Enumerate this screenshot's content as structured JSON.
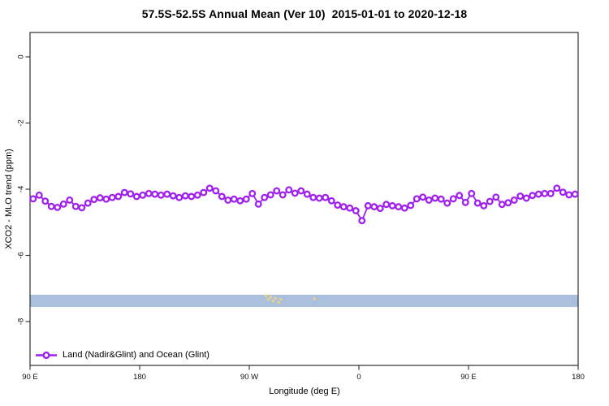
{
  "legend": {
    "label": "Land (Nadir&Glint) and Ocean (Glint)"
  },
  "colors": {
    "series": "#A020F0",
    "band": "#ABC0DD",
    "speck": "#F2D478",
    "axis": "#2E2E2E",
    "text": "#111111"
  },
  "chart_data": {
    "type": "line",
    "title": "57.5S-52.5S Annual Mean (Ver 10)  2015-01-01 to 2020-12-18",
    "xlabel": "Longitude (deg E)",
    "ylabel": "XCO2 - MLO trend (ppm)",
    "xlim": [
      90,
      540
    ],
    "ylim": [
      -9.3,
      0.75
    ],
    "grid": false,
    "legend_position": "bottom-left",
    "x_ticks": {
      "values": [
        90,
        180,
        270,
        360,
        450,
        540
      ],
      "labels": [
        "90 E",
        "180",
        "90 W",
        "0",
        "90 E",
        "180"
      ]
    },
    "y_ticks": {
      "values": [
        0,
        -2,
        -4,
        -6,
        -8
      ],
      "labels": [
        "0",
        "-2",
        "-4",
        "-6",
        "-8"
      ]
    },
    "series": [
      {
        "name": "Land (Nadir&Glint) and Ocean (Glint)",
        "color": "#A020F0",
        "marker": "open-circle",
        "x": [
          92.5,
          97.5,
          102.5,
          107.5,
          112.5,
          117.5,
          122.5,
          127.5,
          132.5,
          137.5,
          142.5,
          147.5,
          152.5,
          157.5,
          162.5,
          167.5,
          172.5,
          177.5,
          182.5,
          187.5,
          192.5,
          197.5,
          202.5,
          207.5,
          212.5,
          217.5,
          222.5,
          227.5,
          232.5,
          237.5,
          242.5,
          247.5,
          252.5,
          257.5,
          262.5,
          267.5,
          272.5,
          277.5,
          282.5,
          287.5,
          292.5,
          297.5,
          302.5,
          307.5,
          312.5,
          317.5,
          322.5,
          327.5,
          332.5,
          337.5,
          342.5,
          347.5,
          352.5,
          357.5,
          362.5,
          367.5,
          372.5,
          377.5,
          382.5,
          387.5,
          392.5,
          397.5,
          402.5,
          407.5,
          412.5,
          417.5,
          422.5,
          427.5,
          432.5,
          437.5,
          442.5,
          447.5,
          452.5,
          457.5,
          462.5,
          467.5,
          472.5,
          477.5,
          482.5,
          487.5,
          492.5,
          497.5,
          502.5,
          507.5,
          512.5,
          517.5,
          522.5,
          527.5,
          532.5,
          537.5
        ],
        "values": [
          -4.29,
          -4.18,
          -4.36,
          -4.52,
          -4.55,
          -4.45,
          -4.33,
          -4.52,
          -4.56,
          -4.42,
          -4.31,
          -4.26,
          -4.3,
          -4.25,
          -4.22,
          -4.1,
          -4.14,
          -4.22,
          -4.18,
          -4.13,
          -4.15,
          -4.18,
          -4.15,
          -4.2,
          -4.25,
          -4.2,
          -4.22,
          -4.18,
          -4.1,
          -3.97,
          -4.05,
          -4.22,
          -4.33,
          -4.3,
          -4.35,
          -4.3,
          -4.13,
          -4.45,
          -4.25,
          -4.17,
          -4.05,
          -4.17,
          -4.02,
          -4.12,
          -4.05,
          -4.15,
          -4.25,
          -4.27,
          -4.25,
          -4.35,
          -4.48,
          -4.53,
          -4.57,
          -4.65,
          -4.95,
          -4.5,
          -4.53,
          -4.58,
          -4.46,
          -4.5,
          -4.53,
          -4.57,
          -4.49,
          -4.29,
          -4.24,
          -4.33,
          -4.27,
          -4.3,
          -4.42,
          -4.29,
          -4.19,
          -4.4,
          -4.13,
          -4.42,
          -4.5,
          -4.37,
          -4.24,
          -4.46,
          -4.41,
          -4.33,
          -4.21,
          -4.27,
          -4.19,
          -4.15,
          -4.13,
          -4.13,
          -3.97,
          -4.09,
          -4.17,
          -4.15
        ]
      }
    ],
    "band": {
      "y_top": -7.19,
      "y_bottom": -7.56,
      "x_range": [
        90,
        540
      ],
      "color": "#ABC0DD"
    },
    "specks": [
      {
        "x": 283.5,
        "y": -7.22
      },
      {
        "x": 285.5,
        "y": -7.33
      },
      {
        "x": 287.5,
        "y": -7.26
      },
      {
        "x": 289.5,
        "y": -7.38
      },
      {
        "x": 291.5,
        "y": -7.3
      },
      {
        "x": 294.0,
        "y": -7.42
      },
      {
        "x": 296.0,
        "y": -7.33
      },
      {
        "x": 323.5,
        "y": -7.31
      }
    ]
  }
}
